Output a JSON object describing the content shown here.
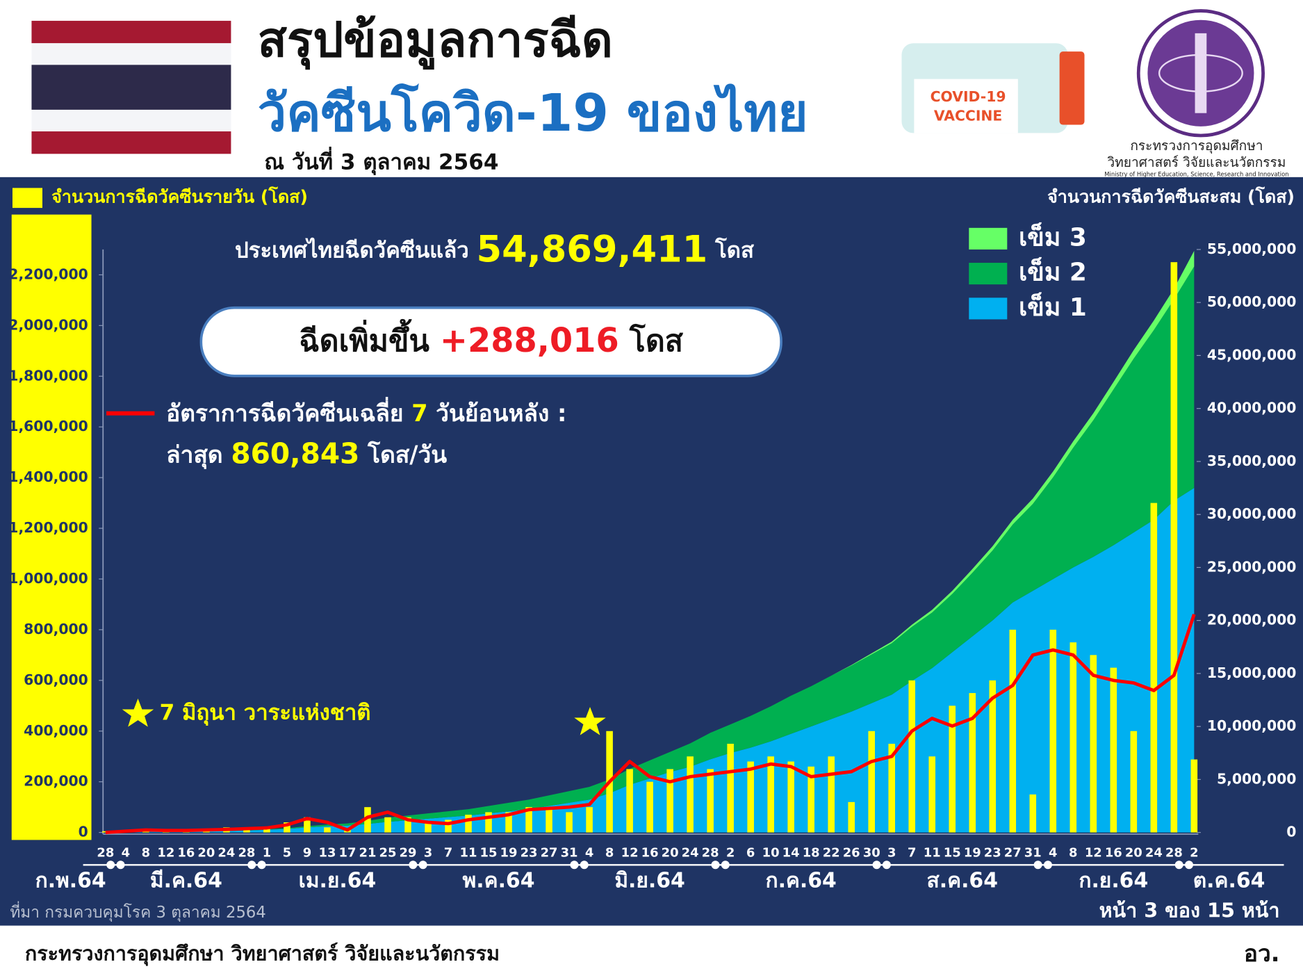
{
  "header": {
    "title": "สรุปข้อมูลการฉีด",
    "subtitle": "วัคซีนโควิด-19 ของไทย",
    "date": "ณ วันที่ 3 ตุลาคม 2564",
    "vaccine_label": [
      "COVID-19",
      "VACCINE"
    ],
    "ministry": [
      "กระทรวงการอุดมศึกษา",
      "วิทยาศาสตร์ วิจัยและนวัตกรรม",
      "Ministry of Higher Education, Science, Research and Innovation"
    ]
  },
  "chart_data": {
    "type": "bar",
    "total_text": [
      "ประเทศไทยฉีดวัคซีนแล้ว",
      "54,869,411",
      "โดส"
    ],
    "increase_text": [
      "ฉีดเพิ่มขึ้น",
      "+288,016",
      "โดส"
    ],
    "avg_label": [
      "อัตราการฉีดวัคซีนเฉลี่ย",
      "7",
      "วันย้อนหลัง :"
    ],
    "latest_label": [
      "ล่าสุด",
      "860,843",
      "โดส/วัน"
    ],
    "annotation": "7 มิถุนา วาระแห่งชาติ",
    "y2_title": "จำนวนการฉีดวัคซีนสะสม (โดส)",
    "categories": [
      "28",
      "4",
      "8",
      "12",
      "16",
      "20",
      "24",
      "28",
      "1",
      "5",
      "9",
      "13",
      "17",
      "21",
      "25",
      "29",
      "3",
      "7",
      "11",
      "15",
      "19",
      "23",
      "27",
      "31",
      "4",
      "8",
      "12",
      "16",
      "20",
      "24",
      "28",
      "2",
      "6",
      "10",
      "14",
      "18",
      "22",
      "26",
      "30",
      "3",
      "7",
      "11",
      "15",
      "19",
      "23",
      "27",
      "31",
      "4",
      "8",
      "12",
      "16",
      "20",
      "24",
      "28",
      "2"
    ],
    "months": [
      "ก.พ.64",
      "มี.ค.64",
      "เม.ย.64",
      "พ.ค.64",
      "มิ.ย.64",
      "ก.ค.64",
      "ส.ค.64",
      "ก.ย.64",
      "ต.ค.64"
    ],
    "ylim": [
      0,
      2300000
    ],
    "yticks": [
      0,
      {
        "value": 200000,
        "label": "200,000"
      },
      {
        "value": 400000,
        "label": "400,000"
      },
      {
        "value": 600000,
        "label": "600,000"
      },
      {
        "value": 800000,
        "label": "800,000"
      },
      {
        "value": 1000000,
        "label": "1,000,000"
      },
      {
        "value": 1200000,
        "label": "1,200,000"
      },
      {
        "value": 1400000,
        "label": "1,400,000"
      },
      {
        "value": 1600000,
        "label": "1,600,000"
      },
      {
        "value": 1800000,
        "label": "1,800,000"
      },
      {
        "value": 2000000,
        "label": "2,000,000"
      },
      {
        "value": 2200000,
        "label": "2,200,000"
      }
    ],
    "y2lim": [
      0,
      55000000
    ],
    "y2ticks": [
      0,
      {
        "value": 5000000,
        "label": "5,000,000"
      },
      {
        "value": 10000000,
        "label": "10,000,000"
      },
      {
        "value": 15000000,
        "label": "15,000,000"
      },
      {
        "value": 20000000,
        "label": "20,000,000"
      },
      {
        "value": 25000000,
        "label": "25,000,000"
      },
      {
        "value": 30000000,
        "label": "30,000,000"
      },
      {
        "value": 35000000,
        "label": "35,000,000"
      },
      {
        "value": 40000000,
        "label": "40,000,000"
      },
      {
        "value": 45000000,
        "label": "45,000,000"
      },
      {
        "value": 50000000,
        "label": "50,000,000"
      },
      {
        "value": 55000000,
        "label": "55,000,000"
      }
    ],
    "series": [
      {
        "name": "เข็ม 1",
        "type": "area",
        "axis": "y2",
        "color": "#00b0f0",
        "values": [
          0,
          30000,
          60000,
          80000,
          100000,
          120000,
          150000,
          180000,
          260000,
          330000,
          480000,
          590000,
          650000,
          800000,
          1000000,
          1150000,
          1300000,
          1450000,
          1600000,
          1800000,
          2000000,
          2200000,
          2500000,
          2800000,
          3100000,
          3700000,
          4500000,
          5100000,
          5700000,
          6200000,
          6900000,
          7500000,
          8000000,
          8600000,
          9300000,
          10000000,
          10700000,
          11400000,
          12200000,
          13000000,
          14300000,
          15500000,
          17000000,
          18500000,
          20000000,
          21700000,
          22800000,
          23900000,
          25000000,
          26000000,
          27100000,
          28300000,
          29500000,
          31300000,
          32500000
        ]
      },
      {
        "name": "เข็ม 2",
        "type": "area",
        "axis": "y2",
        "color": "#00b050",
        "values": [
          0,
          0,
          0,
          0,
          0,
          0,
          10000,
          20000,
          40000,
          70000,
          120000,
          160000,
          200000,
          300000,
          400000,
          450000,
          500000,
          550000,
          600000,
          700000,
          800000,
          900000,
          1000000,
          1100000,
          1200000,
          1300000,
          1500000,
          1700000,
          1900000,
          2200000,
          2500000,
          2700000,
          3000000,
          3300000,
          3600000,
          3800000,
          4100000,
          4350000,
          4600000,
          4850000,
          5100000,
          5250000,
          5500000,
          6000000,
          6600000,
          7350000,
          8200000,
          9600000,
          11300000,
          12900000,
          14700000,
          16400000,
          17900000,
          19000000,
          20900000
        ]
      },
      {
        "name": "เข็ม 3",
        "type": "area",
        "axis": "y2",
        "color": "#66ff66",
        "values": [
          0,
          0,
          0,
          0,
          0,
          0,
          0,
          0,
          0,
          0,
          0,
          0,
          0,
          0,
          0,
          0,
          0,
          0,
          0,
          0,
          0,
          0,
          0,
          0,
          0,
          0,
          0,
          0,
          0,
          0,
          0,
          0,
          0,
          0,
          0,
          0,
          0,
          50000,
          100000,
          150000,
          200000,
          250000,
          300000,
          350000,
          400000,
          450000,
          500000,
          550000,
          600000,
          650000,
          700000,
          800000,
          900000,
          1000000,
          1469411
        ]
      },
      {
        "name": "จำนวนการฉีดวัคซีนรายวัน (โดส)",
        "type": "bar",
        "color": "#ffff00",
        "values": [
          5000,
          10000,
          15000,
          5000,
          8000,
          10000,
          20000,
          15000,
          20000,
          40000,
          60000,
          20000,
          10000,
          100000,
          60000,
          60000,
          40000,
          50000,
          70000,
          80000,
          80000,
          100000,
          100000,
          80000,
          100000,
          400000,
          250000,
          200000,
          250000,
          300000,
          250000,
          350000,
          280000,
          300000,
          280000,
          260000,
          300000,
          120000,
          400000,
          350000,
          600000,
          300000,
          500000,
          550000,
          600000,
          800000,
          150000,
          800000,
          750000,
          700000,
          650000,
          400000,
          1300000,
          2250000,
          288016
        ]
      },
      {
        "type": "line",
        "color": "#ff0000",
        "values": [
          0,
          5000,
          10000,
          8000,
          8000,
          10000,
          12000,
          15000,
          18000,
          30000,
          55000,
          40000,
          10000,
          60000,
          80000,
          50000,
          40000,
          35000,
          50000,
          60000,
          70000,
          90000,
          95000,
          100000,
          110000,
          200000,
          280000,
          220000,
          200000,
          220000,
          230000,
          240000,
          250000,
          270000,
          260000,
          220000,
          230000,
          240000,
          280000,
          300000,
          400000,
          450000,
          420000,
          450000,
          530000,
          580000,
          700000,
          720000,
          700000,
          620000,
          600000,
          590000,
          560000,
          620000,
          860843
        ]
      }
    ],
    "source": "ที่มา กรมควบคุมโรค 3 ตุลาคม 2564",
    "page": "หน้า 3 ของ 15 หน้า"
  },
  "footer": {
    "left": "กระทรวงการอุดมศึกษา วิทยาศาสตร์ วิจัยและนวัตกรรม",
    "right": "อว."
  }
}
